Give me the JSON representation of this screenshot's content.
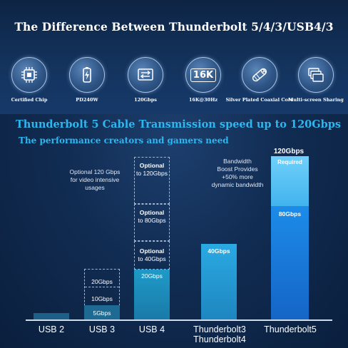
{
  "title": "The Difference Between Thunderbolt 5/4/3/USB4/3",
  "features": [
    {
      "label": "Certified Chip",
      "icon": "chip-icon"
    },
    {
      "label": "PD240W",
      "icon": "battery-icon"
    },
    {
      "label": "120Gbps",
      "icon": "transfer-icon"
    },
    {
      "label": "16K@30Hz",
      "icon": "16k-icon"
    },
    {
      "label": "Silver Plated Coaxial Core",
      "icon": "cable-icon"
    },
    {
      "label": "Multi-screen Sharing",
      "icon": "screens-icon"
    }
  ],
  "icon_16k_text": "16K",
  "headline": "Thunderbolt 5 Cable Transmission speed up to 120Gbps",
  "subheadline": "The performance creators and gamers need",
  "chart_data": {
    "type": "bar",
    "categories": [
      "USB 2",
      "USB 3",
      "USB 4",
      "Thunderbolt3 Thunderbolt4",
      "Thunderbolt5"
    ],
    "category_labels": {
      "usb2": "USB 2",
      "usb3": "USB 3",
      "usb4": "USB 4",
      "tb34_line1": "Thunderbolt3",
      "tb34_line2": "Thunderbolt4",
      "tb5": "Thunderbolt5"
    },
    "usb3_tiers": [
      "5Gbps",
      "10Gbps",
      "20Gbps"
    ],
    "usb4": {
      "base_label": "20Gbps",
      "optional": [
        {
          "line1": "Optional",
          "line2": "to 40Gbps"
        },
        {
          "line1": "Optional",
          "line2": "to 80Gbps"
        },
        {
          "line1": "Optional",
          "line2": "to 120Gbps"
        }
      ]
    },
    "tb34_label": "40Gbps",
    "tb5": {
      "base_label": "80Gbps",
      "boost_label": "Required",
      "top_label": "120Gbps"
    },
    "values_gbps": {
      "USB 2": 0.48,
      "USB 3": 20,
      "USB 4": 120,
      "Thunderbolt3 Thunderbolt4": 40,
      "Thunderbolt5": 120
    },
    "notes": {
      "usb4_line1": "Optional 120 Gbps",
      "usb4_line2": "for video intensive",
      "usb4_line3": "usages",
      "tb5_line1": "Bandwidth",
      "tb5_line2": "Boost Provides",
      "tb5_line3": "+50% more",
      "tb5_line4": "dynamic bandwidth"
    }
  },
  "colors": {
    "accent": "#2eb6ef",
    "bar_dark": "#1e6a93",
    "bar_mid": "#1f8ec0",
    "bar_light": "#2aa7e0",
    "tb5_blue": "#1a7fe0",
    "tb5_light": "#5ec4f6"
  }
}
